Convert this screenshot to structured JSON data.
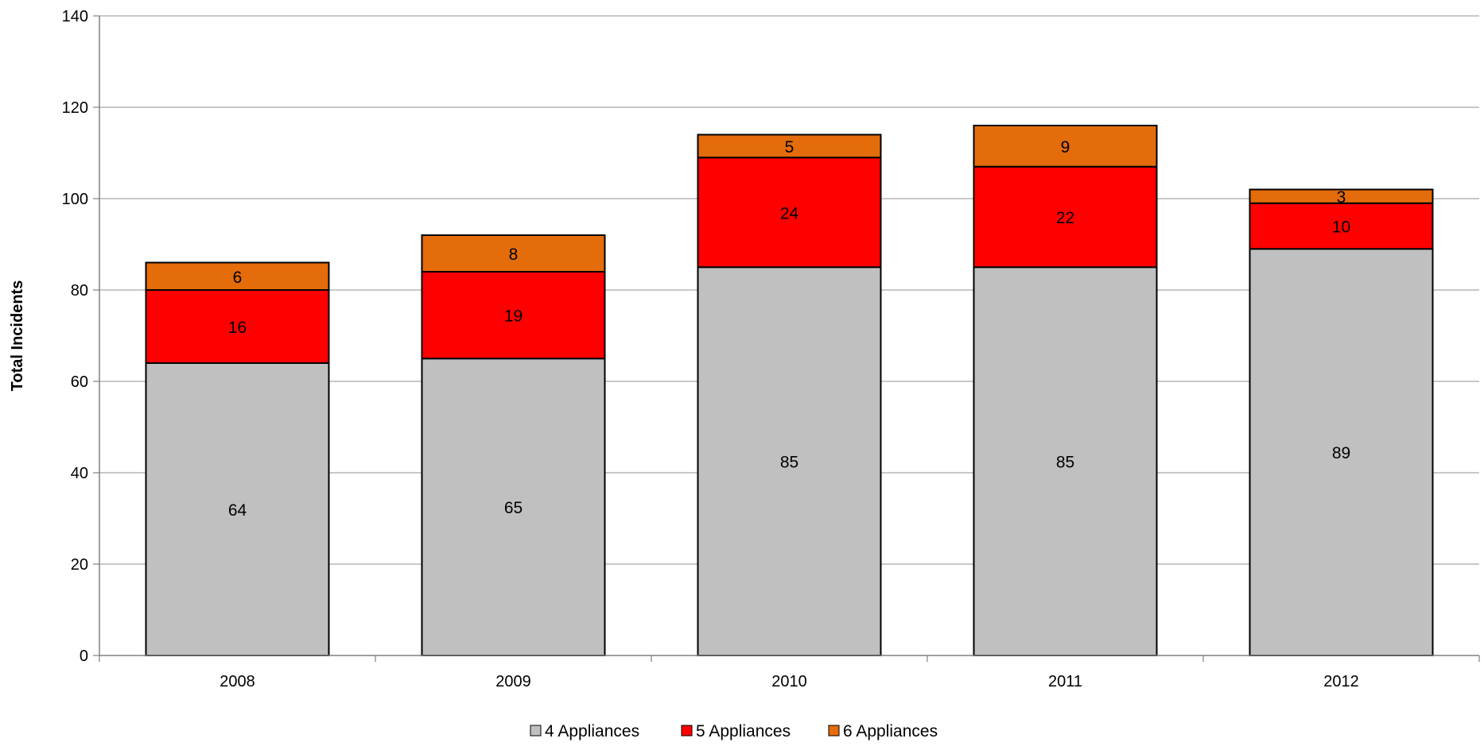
{
  "chart_data": {
    "type": "bar",
    "stacked": true,
    "title": "",
    "xlabel": "",
    "ylabel": "Total Incidents",
    "categories": [
      "2008",
      "2009",
      "2010",
      "2011",
      "2012"
    ],
    "series": [
      {
        "name": "4 Appliances",
        "values": [
          64,
          65,
          85,
          85,
          89
        ],
        "color": "#c0c0c0"
      },
      {
        "name": "5 Appliances",
        "values": [
          16,
          19,
          24,
          22,
          10
        ],
        "color": "#ff0000"
      },
      {
        "name": "6 Appliances",
        "values": [
          6,
          8,
          5,
          9,
          3
        ],
        "color": "#e46c0a"
      }
    ],
    "ylim": [
      0,
      140
    ],
    "yticks": [
      0,
      20,
      40,
      60,
      80,
      100,
      120,
      140
    ],
    "grid": true,
    "legend_position": "bottom",
    "data_labels": true
  }
}
